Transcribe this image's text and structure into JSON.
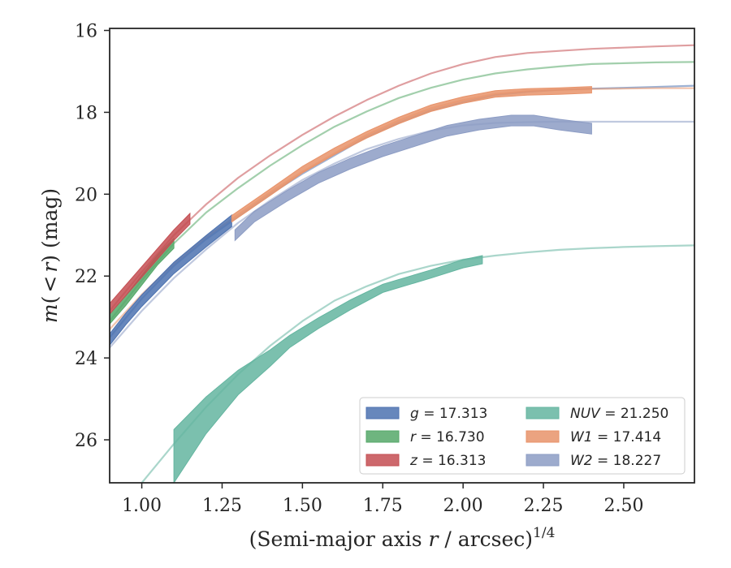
{
  "chart_data": {
    "type": "line",
    "title": "",
    "xlabel_main": "(Semi-major axis ",
    "xlabel_var": "r",
    "xlabel_tail": " / arcsec)",
    "xlabel_exp": "1/4",
    "ylabel_m": "m",
    "ylabel_open": "(",
    "ylabel_lt": "<",
    "ylabel_r": "r",
    "ylabel_close": ")",
    "ylabel_unit": " (mag)",
    "xlim": [
      0.9,
      2.72
    ],
    "ylim": [
      27.05,
      15.95
    ],
    "y_inverted": true,
    "xticks": [
      {
        "v": 1.0,
        "label": "1.00"
      },
      {
        "v": 1.25,
        "label": "1.25"
      },
      {
        "v": 1.5,
        "label": "1.50"
      },
      {
        "v": 1.75,
        "label": "1.75"
      },
      {
        "v": 2.0,
        "label": "2.00"
      },
      {
        "v": 2.25,
        "label": "2.25"
      },
      {
        "v": 2.5,
        "label": "2.50"
      }
    ],
    "yticks": [
      {
        "v": 16,
        "label": "16"
      },
      {
        "v": 18,
        "label": "18"
      },
      {
        "v": 20,
        "label": "20"
      },
      {
        "v": 22,
        "label": "22"
      },
      {
        "v": 24,
        "label": "24"
      },
      {
        "v": 26,
        "label": "26"
      }
    ],
    "legend_position": "lower-right",
    "series": [
      {
        "name": "g",
        "value_label": "17.313",
        "legend_italic": true,
        "color": "#4c72b0",
        "model": {
          "x": [
            0.9,
            1.0,
            1.1,
            1.2,
            1.3,
            1.4,
            1.5,
            1.6,
            1.7,
            1.8,
            1.9,
            2.0,
            2.1,
            2.2,
            2.3,
            2.4,
            2.5,
            2.6,
            2.72
          ],
          "y": [
            23.5,
            22.55,
            21.75,
            21.1,
            20.55,
            20.0,
            19.5,
            19.05,
            18.6,
            18.25,
            17.95,
            17.75,
            17.58,
            17.5,
            17.45,
            17.42,
            17.4,
            17.38,
            17.35
          ]
        },
        "band": {
          "x": [
            0.9,
            0.95,
            1.0,
            1.1,
            1.2,
            1.28
          ],
          "y": [
            23.55,
            23.05,
            22.6,
            21.8,
            21.15,
            20.65
          ],
          "half_width": 0.14
        }
      },
      {
        "name": "r",
        "value_label": "16.730",
        "legend_italic": true,
        "color": "#55a868",
        "model": {
          "x": [
            0.9,
            1.0,
            1.1,
            1.2,
            1.3,
            1.4,
            1.5,
            1.6,
            1.7,
            1.8,
            1.9,
            2.0,
            2.1,
            2.2,
            2.3,
            2.4,
            2.5,
            2.6,
            2.72
          ],
          "y": [
            23.1,
            22.1,
            21.2,
            20.45,
            19.85,
            19.3,
            18.8,
            18.35,
            17.98,
            17.65,
            17.4,
            17.2,
            17.05,
            16.95,
            16.88,
            16.82,
            16.8,
            16.78,
            16.77
          ]
        },
        "band": {
          "x": [
            0.9,
            0.95,
            1.0,
            1.05,
            1.1
          ],
          "y": [
            23.05,
            22.6,
            22.1,
            21.6,
            21.2
          ],
          "half_width": 0.12
        }
      },
      {
        "name": "z",
        "value_label": "16.313",
        "legend_italic": true,
        "color": "#c44e52",
        "model": {
          "x": [
            0.9,
            1.0,
            1.1,
            1.2,
            1.3,
            1.4,
            1.5,
            1.6,
            1.7,
            1.8,
            1.9,
            2.0,
            2.1,
            2.2,
            2.3,
            2.4,
            2.5,
            2.6,
            2.72
          ],
          "y": [
            22.85,
            21.9,
            21.0,
            20.25,
            19.6,
            19.05,
            18.55,
            18.1,
            17.7,
            17.35,
            17.05,
            16.82,
            16.65,
            16.55,
            16.5,
            16.45,
            16.42,
            16.39,
            16.36
          ]
        },
        "band": {
          "x": [
            0.9,
            0.95,
            1.0,
            1.05,
            1.1,
            1.15
          ],
          "y": [
            22.8,
            22.35,
            21.9,
            21.45,
            21.0,
            20.6
          ],
          "half_width": 0.13
        }
      },
      {
        "name": "NUV",
        "value_label": "21.250",
        "legend_italic": true,
        "color": "#64b5a0",
        "model": {
          "x": [
            0.9,
            1.0,
            1.1,
            1.2,
            1.3,
            1.4,
            1.5,
            1.6,
            1.7,
            1.8,
            1.9,
            2.0,
            2.1,
            2.2,
            2.3,
            2.4,
            2.5,
            2.6,
            2.72
          ],
          "y": [
            28.3,
            27.05,
            26.1,
            25.2,
            24.4,
            23.7,
            23.1,
            22.6,
            22.25,
            21.95,
            21.75,
            21.6,
            21.5,
            21.42,
            21.36,
            21.32,
            21.29,
            21.27,
            21.25
          ]
        },
        "band": {
          "x": [
            1.1,
            1.2,
            1.3,
            1.4,
            1.46,
            1.55,
            1.65,
            1.75,
            1.9,
            2.0,
            2.06
          ],
          "y": [
            26.4,
            25.4,
            24.6,
            24.0,
            23.6,
            23.15,
            22.7,
            22.3,
            21.95,
            21.7,
            21.6
          ],
          "half_width": [
            0.65,
            0.45,
            0.3,
            0.2,
            0.15,
            0.13,
            0.12,
            0.1,
            0.1,
            0.1,
            0.1
          ]
        }
      },
      {
        "name": "W1",
        "value_label": "17.414",
        "legend_italic": true,
        "color": "#e8936a",
        "model": {
          "x": [
            0.9,
            1.0,
            1.1,
            1.2,
            1.3,
            1.4,
            1.5,
            1.6,
            1.7,
            1.8,
            1.9,
            2.0,
            2.1,
            2.2,
            2.3,
            2.4,
            2.5,
            2.6,
            2.72
          ],
          "y": [
            23.3,
            22.45,
            21.7,
            21.05,
            20.5,
            19.95,
            19.45,
            19.0,
            18.55,
            18.2,
            17.9,
            17.7,
            17.55,
            17.48,
            17.45,
            17.43,
            17.42,
            17.41,
            17.41
          ]
        },
        "band": {
          "x": [
            1.28,
            1.4,
            1.5,
            1.6,
            1.7,
            1.8,
            1.9,
            2.0,
            2.1,
            2.2,
            2.3,
            2.4
          ],
          "y": [
            20.6,
            19.95,
            19.4,
            18.95,
            18.55,
            18.2,
            17.9,
            17.7,
            17.55,
            17.5,
            17.48,
            17.45
          ],
          "half_width": 0.08
        }
      },
      {
        "name": "W2",
        "value_label": "18.227",
        "legend_italic": true,
        "color": "#8c9cc4",
        "model": {
          "x": [
            0.9,
            1.0,
            1.1,
            1.2,
            1.3,
            1.4,
            1.5,
            1.6,
            1.7,
            1.8,
            1.9,
            2.0,
            2.1,
            2.2,
            2.3,
            2.4,
            2.5,
            2.6,
            2.72
          ],
          "y": [
            23.75,
            22.85,
            22.05,
            21.35,
            20.7,
            20.15,
            19.65,
            19.25,
            18.9,
            18.65,
            18.45,
            18.32,
            18.26,
            18.24,
            18.23,
            18.23,
            18.23,
            18.23,
            18.23
          ]
        },
        "band": {
          "x": [
            1.29,
            1.35,
            1.45,
            1.55,
            1.65,
            1.75,
            1.85,
            1.95,
            2.05,
            2.15,
            2.22,
            2.3,
            2.4
          ],
          "y": [
            21.0,
            20.55,
            20.05,
            19.6,
            19.25,
            18.95,
            18.7,
            18.45,
            18.3,
            18.2,
            18.2,
            18.3,
            18.4
          ],
          "half_width": 0.13
        }
      }
    ]
  }
}
